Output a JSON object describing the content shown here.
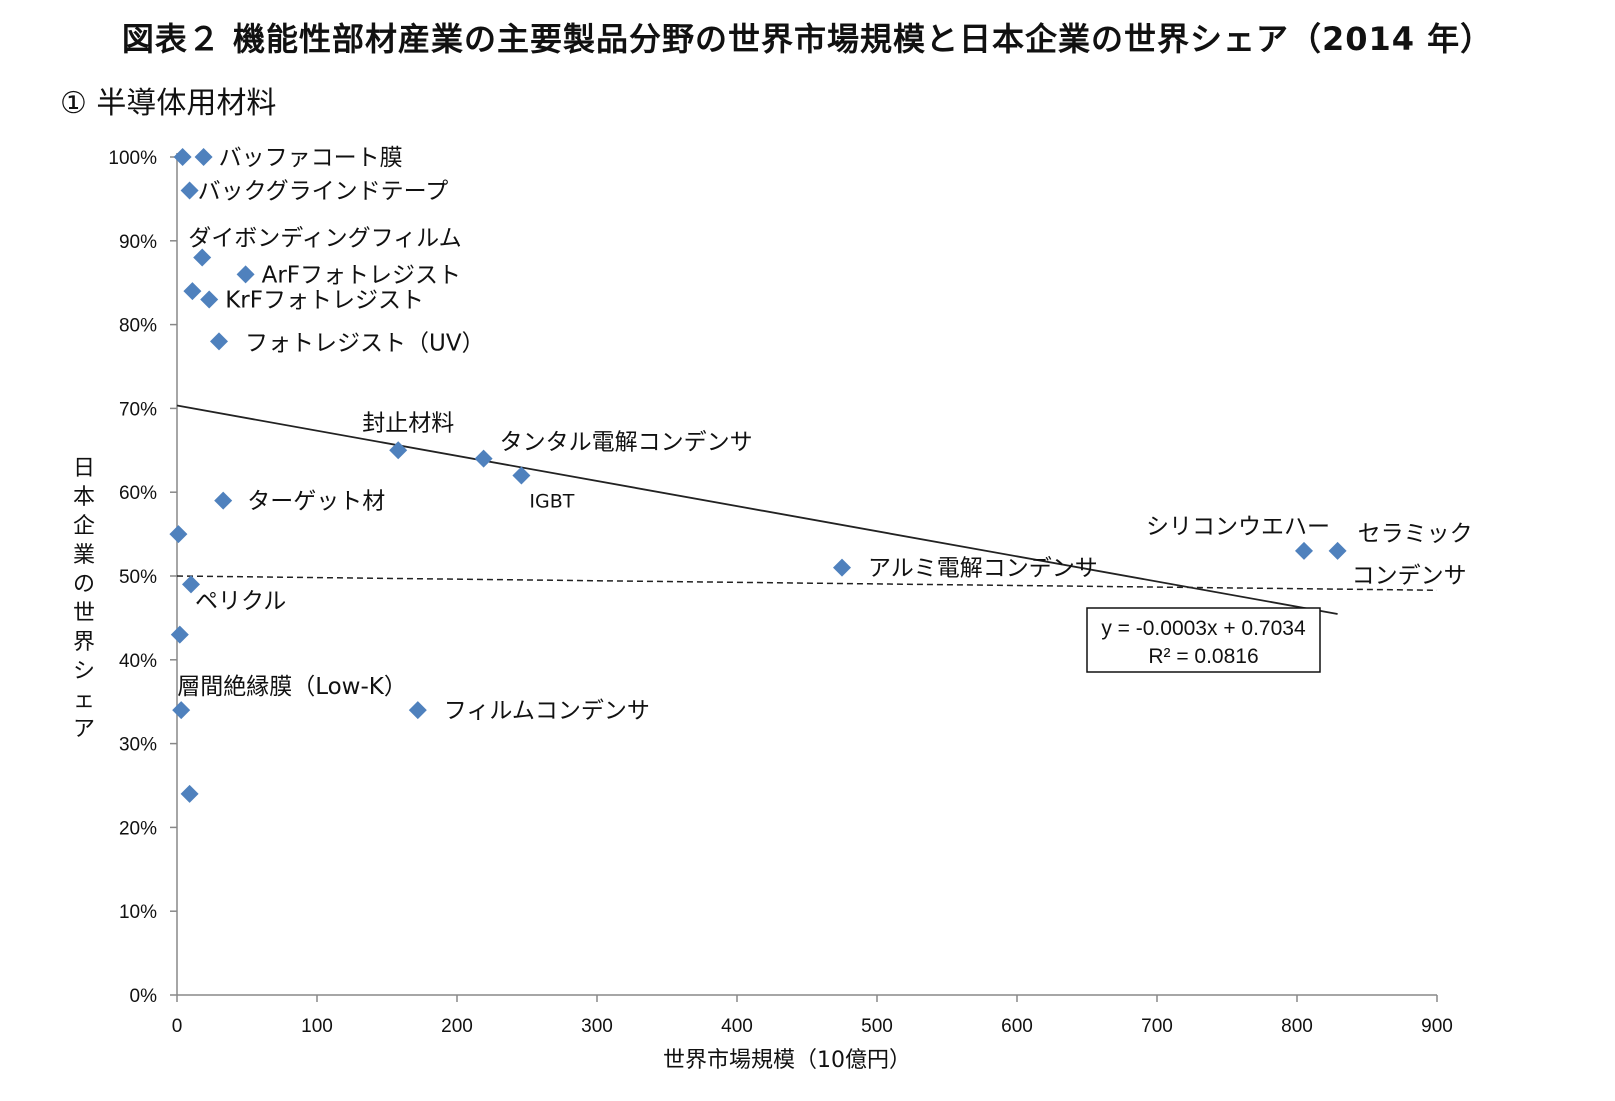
{
  "header": {
    "title": "図表２ 機能性部材産業の主要製品分野の世界市場規模と日本企業の世界シェア（2014 年）",
    "subtitle": "①  半導体用材料"
  },
  "chart_data": {
    "type": "scatter",
    "xlabel": "世界市場規模（10億円）",
    "ylabel": "日本企業の世界シェア",
    "xlim": [
      0,
      900
    ],
    "ylim": [
      0,
      1
    ],
    "x_ticks": [
      0,
      100,
      200,
      300,
      400,
      500,
      600,
      700,
      800,
      900
    ],
    "y_ticks": [
      "0%",
      "10%",
      "20%",
      "30%",
      "40%",
      "50%",
      "60%",
      "70%",
      "80%",
      "90%",
      "100%"
    ],
    "grid": false,
    "marker_color": "#4f81bd",
    "points": [
      {
        "x": 4,
        "y": 1.0,
        "label": ""
      },
      {
        "x": 19,
        "y": 1.0,
        "label": "バッファコート膜"
      },
      {
        "x": 9,
        "y": 0.96,
        "label": "バックグラインドテープ"
      },
      {
        "x": 18,
        "y": 0.88,
        "label": "ダイボンディングフィルム"
      },
      {
        "x": 49,
        "y": 0.86,
        "label": "ArFフォトレジスト"
      },
      {
        "x": 11,
        "y": 0.84,
        "label": ""
      },
      {
        "x": 23,
        "y": 0.83,
        "label": "KrFフォトレジスト"
      },
      {
        "x": 30,
        "y": 0.78,
        "label": "フォトレジスト（UV）"
      },
      {
        "x": 158,
        "y": 0.65,
        "label": "封止材料"
      },
      {
        "x": 219,
        "y": 0.64,
        "label": "タンタル電解コンデンサ"
      },
      {
        "x": 246,
        "y": 0.62,
        "label": "IGBT"
      },
      {
        "x": 33,
        "y": 0.59,
        "label": "ターゲット材"
      },
      {
        "x": 1,
        "y": 0.55,
        "label": ""
      },
      {
        "x": 805,
        "y": 0.53,
        "label": "シリコンウエハー"
      },
      {
        "x": 829,
        "y": 0.53,
        "label": "セラミック"
      },
      {
        "x": 475,
        "y": 0.51,
        "label": "アルミ電解コンデンサ"
      },
      {
        "x": 10,
        "y": 0.49,
        "label": "ペリクル"
      },
      {
        "x": 2,
        "y": 0.43,
        "label": ""
      },
      {
        "x": 3,
        "y": 0.34,
        "label": "層間絶縁膜（Low-K）"
      },
      {
        "x": 172,
        "y": 0.34,
        "label": "フィルムコンデンサ"
      },
      {
        "x": 9,
        "y": 0.24,
        "label": ""
      }
    ],
    "extra_labels": [
      {
        "text": "コンデンサ"
      }
    ],
    "trendline": {
      "x_range": [
        0,
        829
      ],
      "slope": -0.0003,
      "intercept": 0.7034,
      "equation": "y = -0.0003x + 0.7034",
      "r2": "R² = 0.0816"
    },
    "reference_line": {
      "style": "dashed",
      "y_from": 0.5,
      "y_to": 0.483,
      "x_range": [
        0,
        900
      ]
    }
  }
}
